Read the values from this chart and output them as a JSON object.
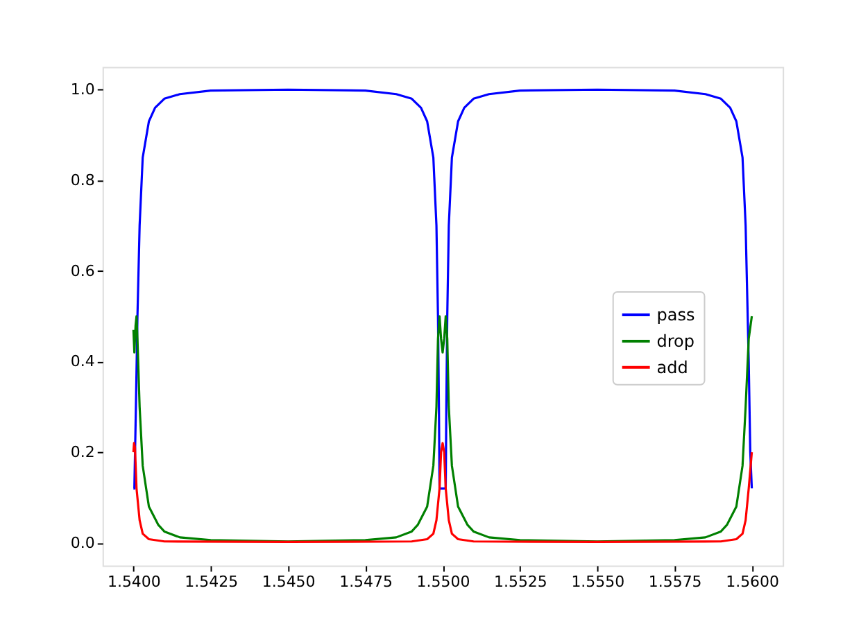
{
  "chart_data": {
    "type": "line",
    "xlim": [
      1.539,
      1.561
    ],
    "ylim": [
      -0.05,
      1.05
    ],
    "xticks": [
      {
        "value": 1.54,
        "label": "1.5400"
      },
      1.5425,
      {
        "value": 1.545,
        "label": "1.5450"
      },
      1.5475,
      {
        "value": 1.55,
        "label": "1.5500"
      },
      1.5525,
      {
        "value": 1.555,
        "label": "1.5550"
      },
      1.5575,
      {
        "value": 1.56,
        "label": "1.5600"
      }
    ],
    "yticks": [
      {
        "value": 0,
        "label": "0.0"
      },
      0.2,
      0.4,
      0.6,
      0.8,
      {
        "value": 1,
        "label": "1.0"
      }
    ],
    "grid": false,
    "legend": "right",
    "marker": "none",
    "line_style": "solid",
    "series": [
      {
        "name": "pass",
        "color": "#0000ff",
        "x": [
          1.54,
          1.54003,
          1.54008,
          1.54013,
          1.5402,
          1.5403,
          1.5405,
          1.5407,
          1.541,
          1.5415,
          1.5425,
          1.545,
          1.5475,
          1.5485,
          1.549,
          1.5493,
          1.5495,
          1.5497,
          1.5498,
          1.54985,
          1.54988,
          1.5499,
          1.5501,
          1.55012,
          1.55015,
          1.5502,
          1.5503,
          1.5505,
          1.5507,
          1.551,
          1.5515,
          1.5525,
          1.555,
          1.5575,
          1.5585,
          1.559,
          1.5593,
          1.5595,
          1.5597,
          1.5598,
          1.5599,
          1.55995,
          1.56
        ],
        "values": [
          0.12,
          0.12,
          0.3,
          0.5,
          0.7,
          0.85,
          0.93,
          0.96,
          0.98,
          0.99,
          0.998,
          1.0,
          0.998,
          0.99,
          0.98,
          0.96,
          0.93,
          0.85,
          0.7,
          0.5,
          0.3,
          0.12,
          0.12,
          0.3,
          0.5,
          0.7,
          0.85,
          0.93,
          0.96,
          0.98,
          0.99,
          0.998,
          1.0,
          0.998,
          0.99,
          0.98,
          0.96,
          0.93,
          0.85,
          0.7,
          0.4,
          0.2,
          0.12
        ]
      },
      {
        "name": "drop",
        "color": "#008000",
        "x": [
          1.54,
          1.54003,
          1.54007,
          1.5401,
          1.54013,
          1.5402,
          1.5403,
          1.5405,
          1.5408,
          1.541,
          1.5415,
          1.5425,
          1.545,
          1.5475,
          1.5485,
          1.549,
          1.5492,
          1.5495,
          1.5497,
          1.5498,
          1.54985,
          1.5499,
          1.54995,
          1.55,
          1.55005,
          1.5501,
          1.55015,
          1.5502,
          1.5503,
          1.5505,
          1.5508,
          1.551,
          1.5515,
          1.5525,
          1.555,
          1.5575,
          1.5585,
          1.559,
          1.5592,
          1.5595,
          1.5597,
          1.5598,
          1.5599,
          1.56
        ],
        "values": [
          0.47,
          0.42,
          0.48,
          0.5,
          0.45,
          0.3,
          0.17,
          0.08,
          0.04,
          0.025,
          0.012,
          0.006,
          0.003,
          0.006,
          0.012,
          0.025,
          0.04,
          0.08,
          0.17,
          0.3,
          0.45,
          0.5,
          0.45,
          0.42,
          0.45,
          0.5,
          0.45,
          0.3,
          0.17,
          0.08,
          0.04,
          0.025,
          0.012,
          0.006,
          0.003,
          0.006,
          0.012,
          0.025,
          0.04,
          0.08,
          0.17,
          0.3,
          0.45,
          0.5
        ]
      },
      {
        "name": "add",
        "color": "#ff0000",
        "x": [
          1.54,
          1.54002,
          1.54005,
          1.5401,
          1.5402,
          1.5403,
          1.5405,
          1.541,
          1.545,
          1.549,
          1.5495,
          1.5497,
          1.5498,
          1.5499,
          1.54995,
          1.55,
          1.55005,
          1.5501,
          1.5502,
          1.5503,
          1.5505,
          1.551,
          1.555,
          1.559,
          1.5595,
          1.5597,
          1.5598,
          1.5599,
          1.56
        ],
        "values": [
          0.2,
          0.22,
          0.21,
          0.12,
          0.05,
          0.02,
          0.008,
          0.003,
          0.002,
          0.003,
          0.008,
          0.02,
          0.05,
          0.12,
          0.2,
          0.22,
          0.2,
          0.12,
          0.05,
          0.02,
          0.008,
          0.003,
          0.002,
          0.003,
          0.008,
          0.02,
          0.05,
          0.12,
          0.2
        ]
      }
    ]
  }
}
